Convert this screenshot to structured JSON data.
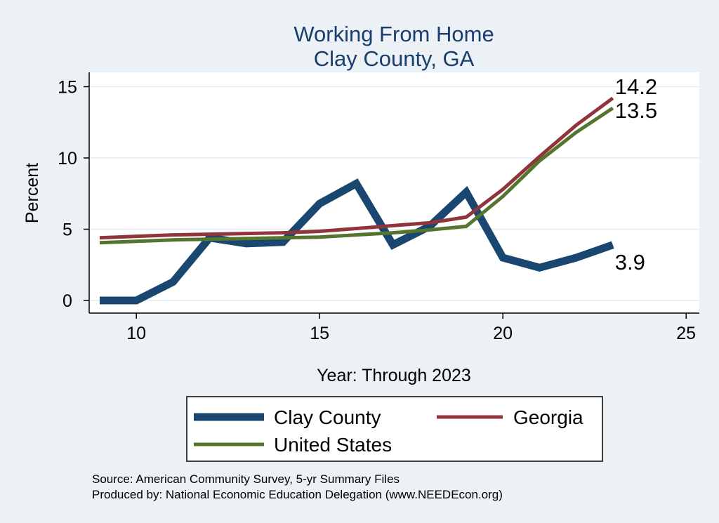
{
  "chart_data": {
    "type": "line",
    "title": "Working From Home",
    "subtitle": "Clay County, GA",
    "xlabel": "Year: Through 2023",
    "ylabel": "Percent",
    "xlim": [
      9,
      25
    ],
    "ylim": [
      0,
      15
    ],
    "xticks": [
      10,
      15,
      20,
      25
    ],
    "yticks": [
      0,
      5,
      10,
      15
    ],
    "grid": true,
    "legend_position": "bottom",
    "series": [
      {
        "name": "Clay County",
        "color": "#1a476f",
        "x": [
          9,
          10,
          11,
          12,
          13,
          14,
          15,
          16,
          17,
          18,
          19,
          20,
          21,
          22,
          23
        ],
        "values": [
          0,
          0,
          1.3,
          4.4,
          4.0,
          4.1,
          6.8,
          8.2,
          3.9,
          5.2,
          7.6,
          3.0,
          2.3,
          3.0,
          3.9
        ],
        "end_label": "3.9"
      },
      {
        "name": "Georgia",
        "color": "#90353b",
        "x": [
          9,
          10,
          11,
          12,
          13,
          14,
          15,
          16,
          17,
          18,
          19,
          20,
          21,
          22,
          23
        ],
        "values": [
          4.4,
          4.5,
          4.6,
          4.65,
          4.7,
          4.75,
          4.85,
          5.05,
          5.25,
          5.45,
          5.85,
          7.8,
          10.1,
          12.3,
          14.2
        ],
        "end_label": "14.2"
      },
      {
        "name": "United States",
        "color": "#55752f",
        "x": [
          9,
          10,
          11,
          12,
          13,
          14,
          15,
          16,
          17,
          18,
          19,
          20,
          21,
          22,
          23
        ],
        "values": [
          4.05,
          4.15,
          4.25,
          4.3,
          4.35,
          4.4,
          4.45,
          4.6,
          4.75,
          4.95,
          5.2,
          7.3,
          9.8,
          11.8,
          13.5
        ],
        "end_label": "13.5"
      }
    ]
  },
  "source_line1": "Source: American Community Survey, 5-yr Summary Files",
  "source_line2": "Produced by: National Economic Education Delegation (www.NEEDEcon.org)"
}
